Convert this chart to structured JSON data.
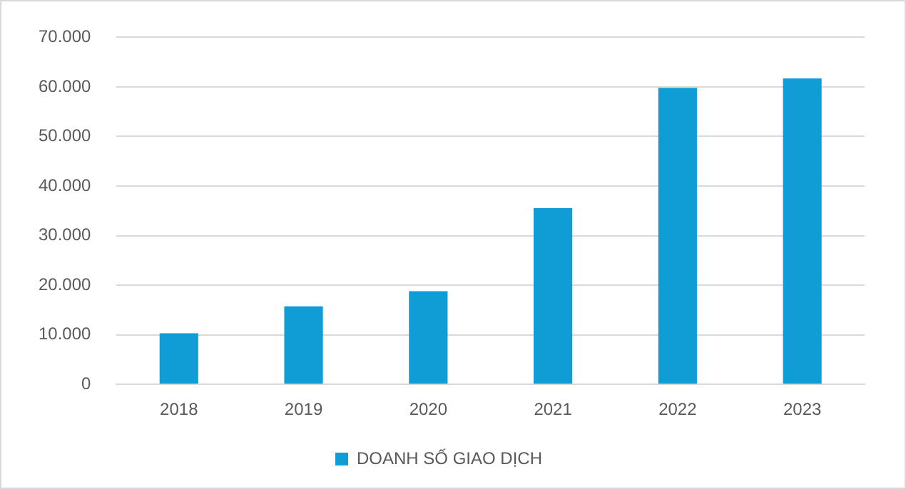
{
  "chart_data": {
    "type": "bar",
    "categories": [
      "2018",
      "2019",
      "2020",
      "2021",
      "2022",
      "2023"
    ],
    "series": [
      {
        "name": "DOANH SỐ GIAO DỊCH",
        "color": "#109dd5",
        "values": [
          10300,
          15750,
          18800,
          35550,
          59800,
          61700
        ]
      }
    ],
    "ylim": [
      0,
      70000
    ],
    "yticks": [
      0,
      {
        "value": 10000,
        "label": "10.000"
      },
      {
        "value": 20000,
        "label": "20.000"
      },
      {
        "value": 30000,
        "label": "30.000"
      },
      {
        "value": 40000,
        "label": "40.000"
      },
      {
        "value": 50000,
        "label": "50.000"
      },
      {
        "value": 60000,
        "label": "60.000"
      },
      {
        "value": 70000,
        "label": "70.000"
      }
    ],
    "grid": "y",
    "legend": "bottom"
  }
}
